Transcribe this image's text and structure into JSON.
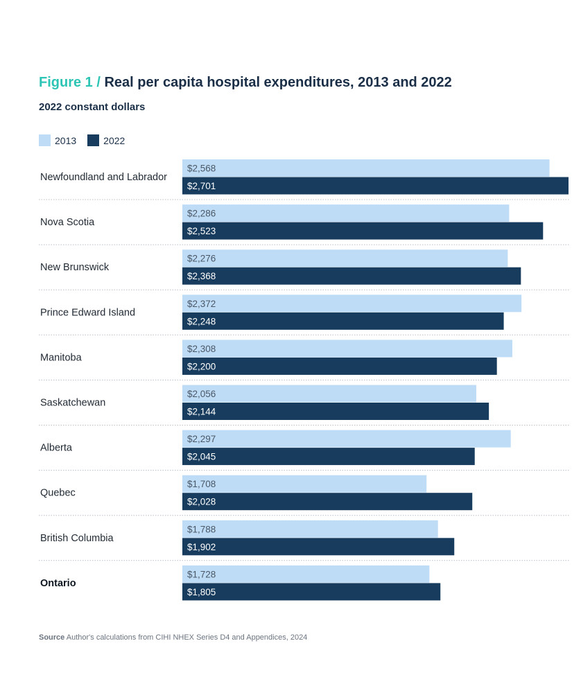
{
  "header": {
    "figure_label": "Figure 1",
    "separator": "/",
    "title": "Real per capita hospital expenditures, 2013 and 2022",
    "subtitle": "2022 constant dollars"
  },
  "source": {
    "label": "Source",
    "text": "Author's calculations from CIHI NHEX Series D4 and Appendices, 2024"
  },
  "colors": {
    "series_2013": "#bfdcf7",
    "series_2022": "#173c5e",
    "label_2013": "#4a5866",
    "label_2022": "#ffffff",
    "divider": "#b8bec6"
  },
  "chart_data": {
    "type": "bar",
    "orientation": "horizontal",
    "title": "Real per capita hospital expenditures, 2013 and 2022",
    "subtitle": "2022 constant dollars",
    "legend_position": "top-left",
    "grid": false,
    "xlim": [
      0,
      2701
    ],
    "categories": [
      "Newfoundland and Labrador",
      "Nova Scotia",
      "New Brunswick",
      "Prince Edward Island",
      "Manitoba",
      "Saskatchewan",
      "Alberta",
      "Quebec",
      "British Columbia",
      "Ontario"
    ],
    "highlight_category": "Ontario",
    "series": [
      {
        "name": "2013",
        "values": [
          2568,
          2286,
          2276,
          2372,
          2308,
          2056,
          2297,
          1708,
          1788,
          1728
        ],
        "labels": [
          "$2,568",
          "$2,286",
          "$2,276",
          "$2,372",
          "$2,308",
          "$2,056",
          "$2,297",
          "$1,708",
          "$1,788",
          "$1,728"
        ]
      },
      {
        "name": "2022",
        "values": [
          2701,
          2523,
          2368,
          2248,
          2200,
          2144,
          2045,
          2028,
          1902,
          1805
        ],
        "labels": [
          "$2,701",
          "$2,523",
          "$2,368",
          "$2,248",
          "$2,200",
          "$2,144",
          "$2,045",
          "$2,028",
          "$1,902",
          "$1,805"
        ]
      }
    ]
  }
}
